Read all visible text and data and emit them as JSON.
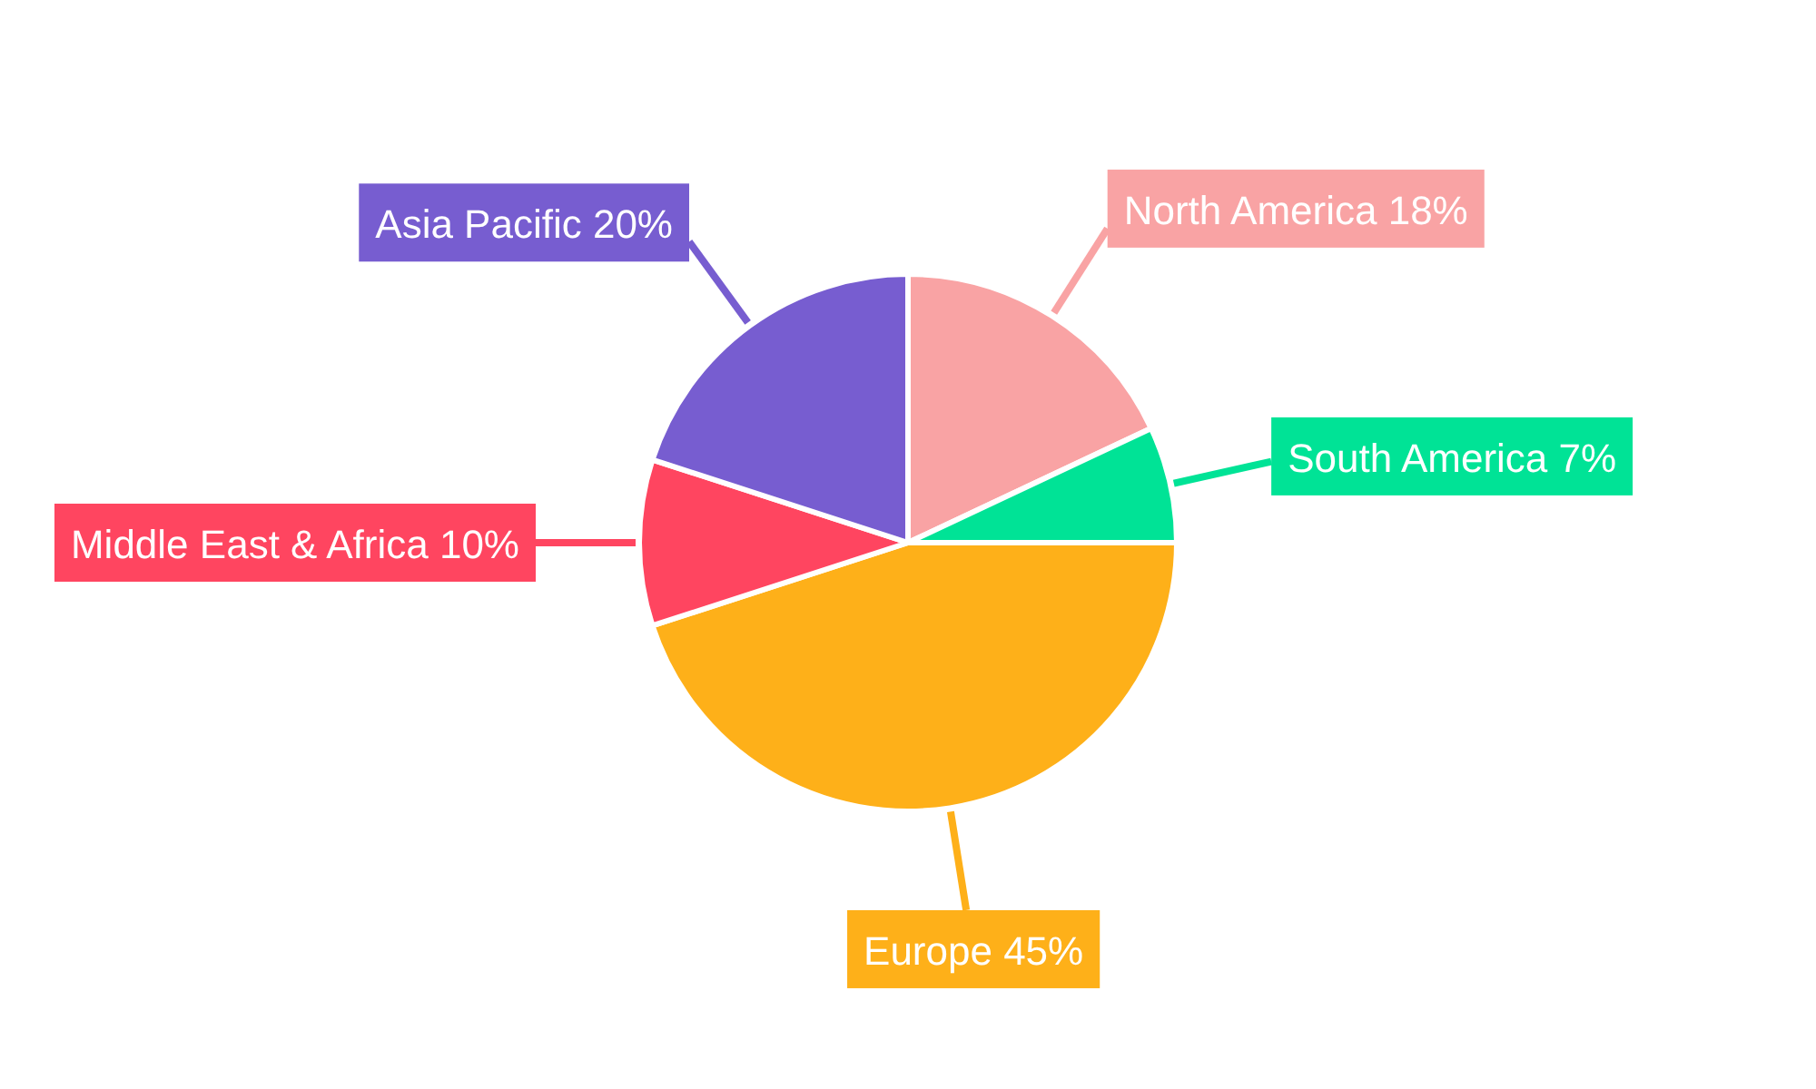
{
  "chart_data": {
    "type": "pie",
    "categories": [
      "North America",
      "South America",
      "Europe",
      "Middle East & Africa",
      "Asia Pacific"
    ],
    "values": [
      18,
      7,
      45,
      10,
      20
    ],
    "colors": [
      "#f9a3a4",
      "#00e396",
      "#feb019",
      "#ff4560",
      "#775dd0"
    ],
    "value_labels": [
      "18%",
      "7%",
      "45%",
      "10%",
      "20%"
    ]
  }
}
